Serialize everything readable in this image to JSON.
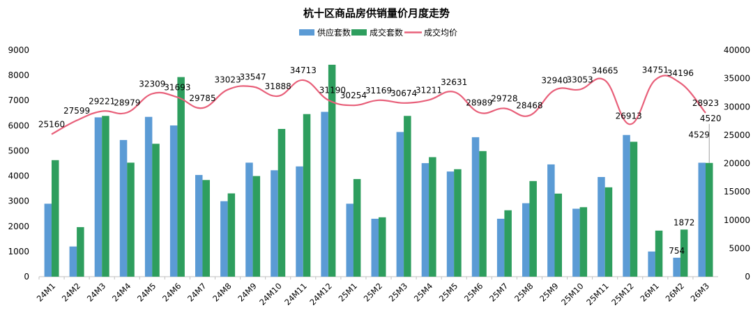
{
  "chart_data": {
    "type": "bar",
    "title": "杭十区商品房供销量价月度走势",
    "categories": [
      "24M1",
      "24M2",
      "24M3",
      "24M4",
      "24M5",
      "24M6",
      "24M7",
      "24M8",
      "24M9",
      "24M10",
      "24M11",
      "24M12",
      "25M1",
      "25M2",
      "25M3",
      "25M4",
      "25M5",
      "25M6",
      "25M7",
      "25M8",
      "25M9",
      "25M10",
      "25M11",
      "25M12",
      "26M1",
      "26M2",
      "26M3"
    ],
    "series": [
      {
        "name": "供应套数",
        "kind": "bar",
        "axis": "left",
        "color": "#5b9bd5",
        "values": [
          2900,
          1200,
          6330,
          5430,
          6350,
          6010,
          4040,
          3000,
          4530,
          4230,
          4380,
          6550,
          2900,
          2300,
          5750,
          4510,
          4180,
          5540,
          2300,
          2920,
          4460,
          2700,
          3960,
          5630,
          1000,
          754,
          4529
        ]
      },
      {
        "name": "成交套数",
        "kind": "bar",
        "axis": "left",
        "color": "#2e9e5e",
        "values": [
          4630,
          1970,
          6390,
          4530,
          5280,
          7930,
          3840,
          3310,
          4000,
          5870,
          6460,
          8420,
          3880,
          2360,
          6390,
          4750,
          4270,
          4990,
          2640,
          3800,
          3300,
          2760,
          3550,
          5360,
          1830,
          1872,
          4520
        ]
      },
      {
        "name": "成交均价",
        "kind": "line",
        "axis": "right",
        "color": "#e8607a",
        "values": [
          25160,
          27599,
          29221,
          28979,
          32309,
          31693,
          29785,
          33023,
          33547,
          31888,
          34713,
          31190,
          30254,
          31169,
          30674,
          31211,
          32631,
          28989,
          29728,
          28468,
          32940,
          33053,
          34665,
          26913,
          34751,
          34196,
          28923
        ]
      }
    ],
    "yleft_ticks": [
      "0",
      "1000",
      "2000",
      "3000",
      "4000",
      "5000",
      "6000",
      "7000",
      "8000",
      "9000"
    ],
    "yright_ticks": [
      "0",
      "5000",
      "10000",
      "15000",
      "20000",
      "25000",
      "30000",
      "35000",
      "40000"
    ],
    "ylim_left": [
      0,
      9000
    ],
    "ylim_right": [
      0,
      40000
    ],
    "bar_labels": {
      "供应套数": {
        "25": "754",
        "26": "4529"
      },
      "成交套数": {
        "25": "1872",
        "26": "4520"
      }
    },
    "legend_position": "top-center",
    "grid": false
  }
}
